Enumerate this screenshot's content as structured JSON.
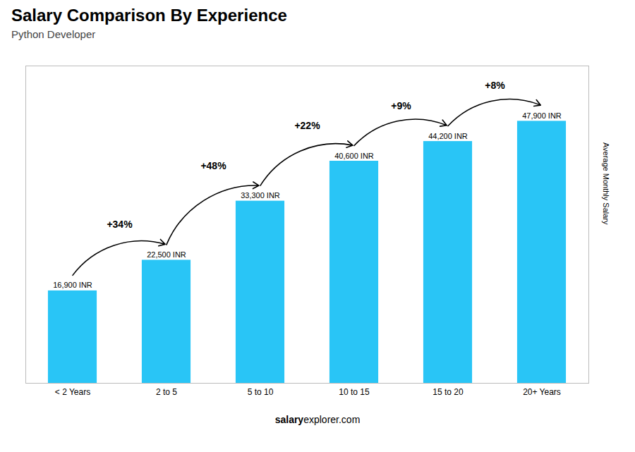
{
  "chart_data": {
    "type": "bar",
    "title": "Salary Comparison By Experience",
    "subtitle": "Python Developer",
    "ylabel": "Average Monthly Salary",
    "categories": [
      "< 2 Years",
      "2 to 5",
      "5 to 10",
      "10 to 15",
      "15 to 20",
      "20+ Years"
    ],
    "values": [
      16900,
      22500,
      33300,
      40600,
      44200,
      47900
    ],
    "value_labels": [
      "16,900 INR",
      "22,500 INR",
      "33,300 INR",
      "40,600 INR",
      "44,200 INR",
      "47,900 INR"
    ],
    "data_labels": true,
    "color": "#29c5f6",
    "ylim": [
      0,
      58000
    ],
    "tick_labels": "x",
    "grid": false,
    "annotations": [
      "+34%",
      "+48%",
      "+22%",
      "+9%",
      "+8%"
    ],
    "source": [
      "salary",
      "explorer.com"
    ]
  }
}
